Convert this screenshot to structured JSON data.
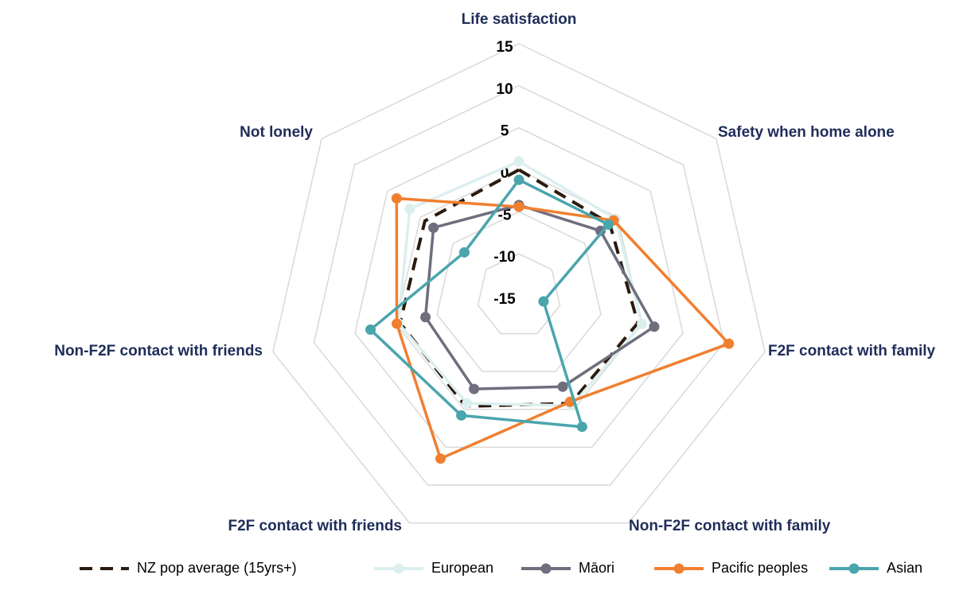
{
  "chart_data": {
    "type": "radar",
    "categories": [
      "Life satisfaction",
      "Safety when home alone",
      "F2F contact with family",
      "Non-F2F contact with family",
      "F2F contact with friends",
      "Non-F2F contact with friends",
      "Not lonely"
    ],
    "ylim": [
      -15,
      15
    ],
    "yticks": [
      -15,
      -10,
      -5,
      0,
      5,
      10,
      15
    ],
    "grid": true,
    "series": [
      {
        "name": "NZ pop average (15yrs+)",
        "color": "#2b1a0e",
        "dashed": true,
        "values": [
          0,
          -1.2,
          -0.5,
          -0.8,
          -0.4,
          -0.5,
          -0.7
        ]
      },
      {
        "name": "European",
        "color": "#dcefef",
        "values": [
          1,
          -0.3,
          0,
          -0.5,
          -0.8,
          -0.3,
          1.6
        ]
      },
      {
        "name": "Māori",
        "color": "#6e6e7e",
        "values": [
          -4.2,
          -2.6,
          1.5,
          -3,
          -2.7,
          -3.6,
          -2
        ]
      },
      {
        "name": "Pacific peoples",
        "color": "#f07f30",
        "values": [
          -4.4,
          -0.6,
          10.6,
          -1,
          6.5,
          -0.1,
          3.6
        ]
      },
      {
        "name": "Asian",
        "color": "#4aa5ad",
        "values": [
          -1.2,
          -1.4,
          -12,
          2.3,
          0.8,
          3.1,
          -6.7
        ]
      }
    ]
  }
}
